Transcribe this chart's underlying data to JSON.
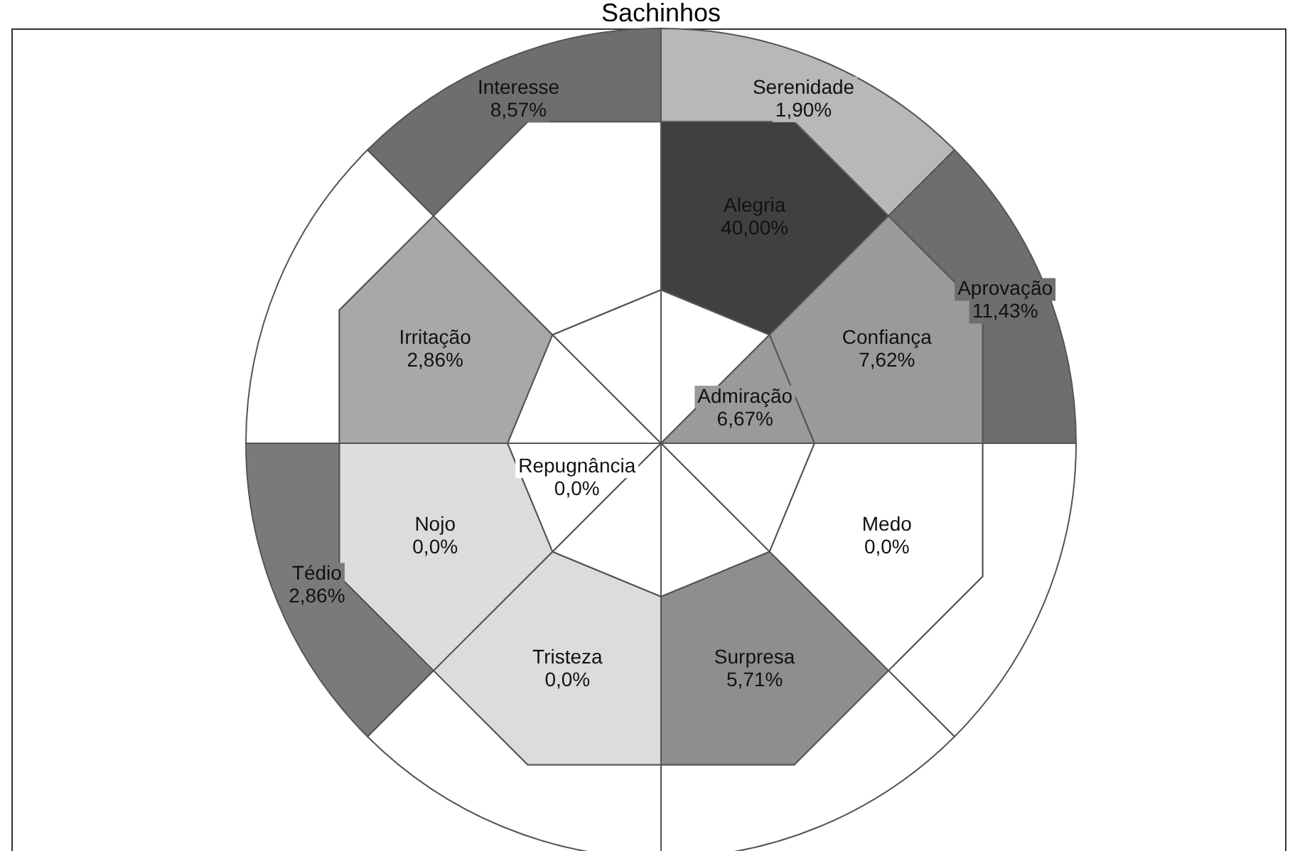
{
  "chart_data": {
    "type": "other",
    "title": "Sachinhos",
    "categories": [
      null,
      "Alegria",
      "Serenidade",
      "Admiração",
      "Confiança",
      "Aprovação",
      null,
      "Medo",
      null,
      null,
      "Surpresa",
      null,
      null,
      "Tristeza",
      null,
      "Repugnância",
      "Nojo",
      "Tédio",
      null,
      "Irritação",
      null,
      null,
      null,
      "Interesse"
    ],
    "values": [
      null,
      40.0,
      1.9,
      6.67,
      7.62,
      11.43,
      null,
      0.0,
      null,
      null,
      5.71,
      null,
      null,
      0.0,
      null,
      0.0,
      0.0,
      2.86,
      null,
      2.86,
      null,
      null,
      null,
      8.57
    ],
    "value_labels": [
      null,
      "40,00%",
      "1,90%",
      "6,67%",
      "7,62%",
      "11,43%",
      null,
      "0,0%",
      null,
      null,
      "5,71%",
      null,
      null,
      "0,0%",
      null,
      "0,0%",
      "0,0%",
      "2,86%",
      null,
      "2,86%",
      null,
      null,
      null,
      "8,57%"
    ],
    "colors": [
      "#ffffff",
      "#404040",
      "#b8b8b8",
      "#9a9a9a",
      "#9a9a9a",
      "#6e6e6e",
      "#ffffff",
      "#ffffff",
      "#ffffff",
      "#ffffff",
      "#8e8e8e",
      "#ffffff",
      "#ffffff",
      "#dcdcdc",
      "#ffffff",
      "#ffffff",
      "#dcdcdc",
      "#7a7a7a",
      "#ffffff",
      "#a8a8a8",
      "#ffffff",
      "#ffffff",
      "#ffffff",
      "#6e6e6e"
    ]
  }
}
